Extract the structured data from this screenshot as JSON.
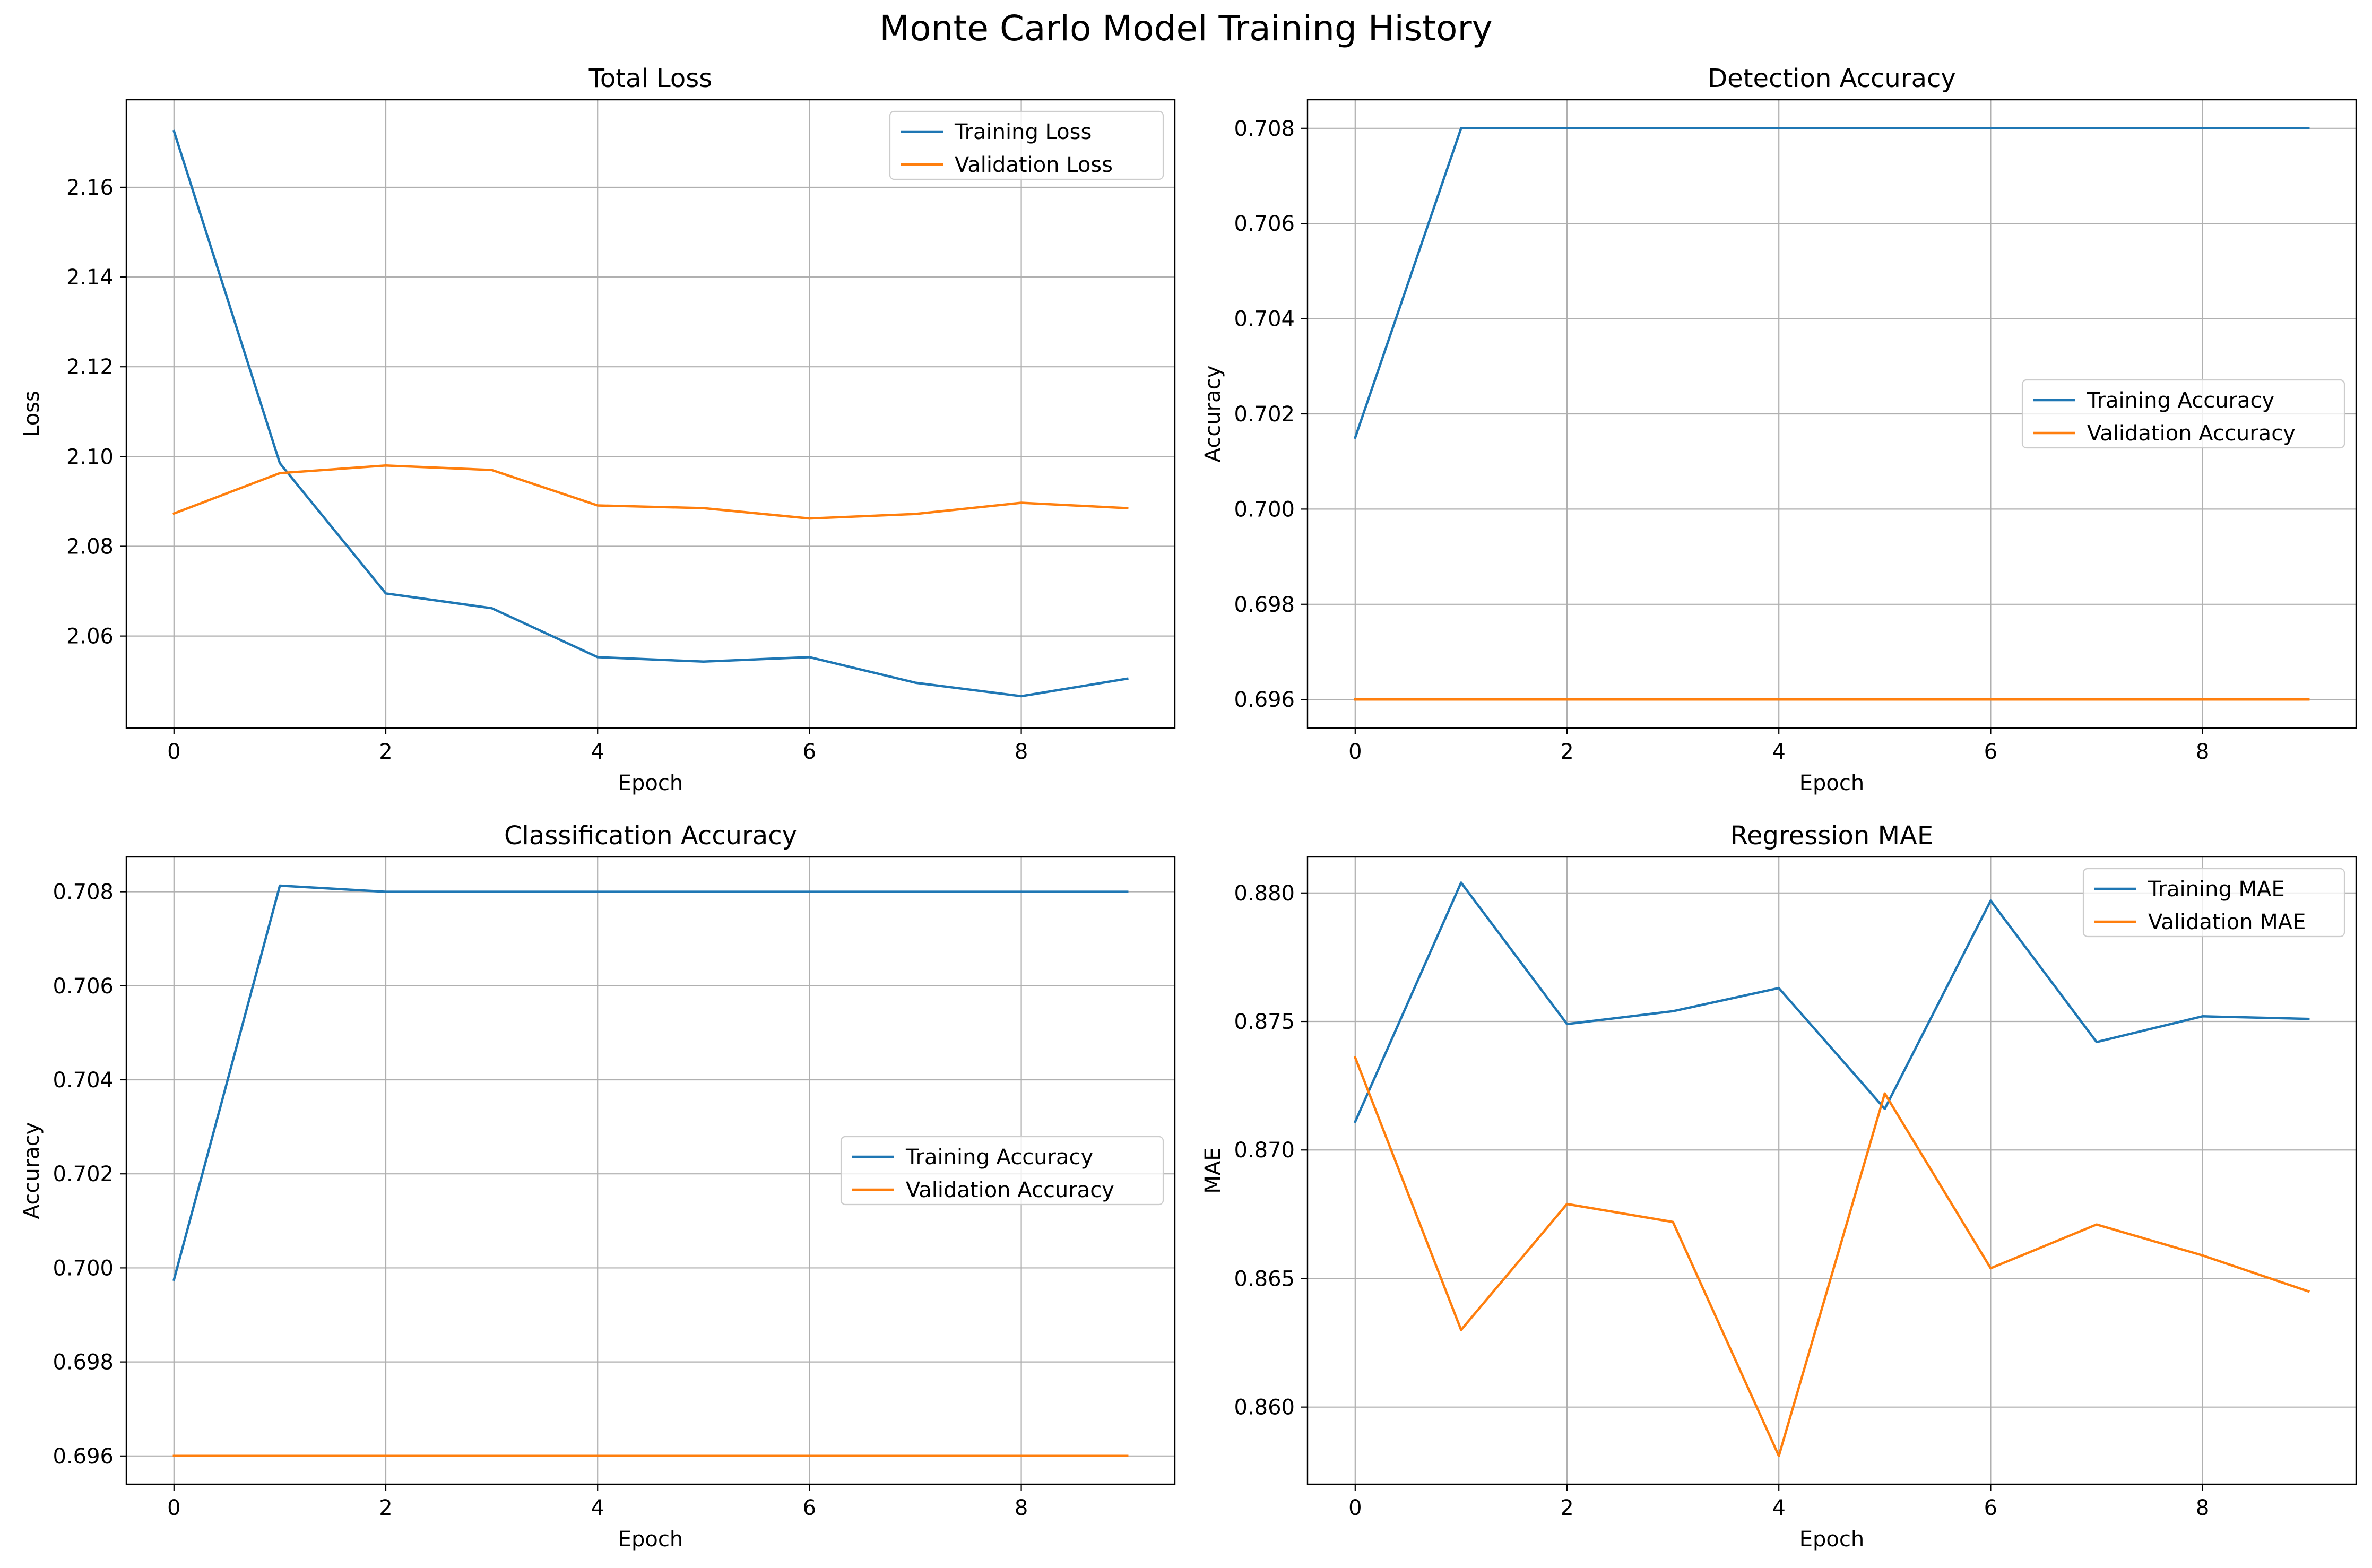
{
  "figure": {
    "suptitle": "Monte Carlo Model Training History",
    "colors": {
      "training": "#1f77b4",
      "validation": "#ff7f0e",
      "grid": "#b0b0b0"
    }
  },
  "chart_data": [
    {
      "type": "line",
      "title": "Total Loss",
      "xlabel": "Epoch",
      "ylabel": "Loss",
      "x": [
        0,
        1,
        2,
        3,
        4,
        5,
        6,
        7,
        8,
        9
      ],
      "xlim": [
        -0.45,
        9.45
      ],
      "ylim": [
        2.0395,
        2.1795
      ],
      "xticks": [
        0,
        2,
        4,
        6,
        8
      ],
      "yticks": [
        2.06,
        2.08,
        2.1,
        2.12,
        2.14,
        2.16
      ],
      "ytick_labels": [
        "2.06",
        "2.08",
        "2.10",
        "2.12",
        "2.14",
        "2.16"
      ],
      "grid": true,
      "legend_position": "upper right",
      "series": [
        {
          "name": "Training Loss",
          "values": [
            2.1725,
            2.0985,
            2.0695,
            2.0662,
            2.0553,
            2.0543,
            2.0553,
            2.0496,
            2.0466,
            2.0505
          ]
        },
        {
          "name": "Validation Loss",
          "values": [
            2.0873,
            2.0963,
            2.098,
            2.097,
            2.0891,
            2.0885,
            2.0862,
            2.0872,
            2.0897,
            2.0885
          ]
        }
      ]
    },
    {
      "type": "line",
      "title": "Detection Accuracy",
      "xlabel": "Epoch",
      "ylabel": "Accuracy",
      "x": [
        0,
        1,
        2,
        3,
        4,
        5,
        6,
        7,
        8,
        9
      ],
      "xlim": [
        -0.45,
        9.45
      ],
      "ylim": [
        0.6954,
        0.7086
      ],
      "xticks": [
        0,
        2,
        4,
        6,
        8
      ],
      "yticks": [
        0.696,
        0.698,
        0.7,
        0.702,
        0.704,
        0.706,
        0.708
      ],
      "ytick_labels": [
        "0.696",
        "0.698",
        "0.700",
        "0.702",
        "0.704",
        "0.706",
        "0.708"
      ],
      "grid": true,
      "legend_position": "center right",
      "series": [
        {
          "name": "Training Accuracy",
          "values": [
            0.7015,
            0.708,
            0.708,
            0.708,
            0.708,
            0.708,
            0.708,
            0.708,
            0.708,
            0.708
          ]
        },
        {
          "name": "Validation Accuracy",
          "values": [
            0.696,
            0.696,
            0.696,
            0.696,
            0.696,
            0.696,
            0.696,
            0.696,
            0.696,
            0.696
          ]
        }
      ]
    },
    {
      "type": "line",
      "title": "Classification Accuracy",
      "xlabel": "Epoch",
      "ylabel": "Accuracy",
      "x": [
        0,
        1,
        2,
        3,
        4,
        5,
        6,
        7,
        8,
        9
      ],
      "xlim": [
        -0.45,
        9.45
      ],
      "ylim": [
        0.6954,
        0.70874
      ],
      "xticks": [
        0,
        2,
        4,
        6,
        8
      ],
      "yticks": [
        0.696,
        0.698,
        0.7,
        0.702,
        0.704,
        0.706,
        0.708
      ],
      "ytick_labels": [
        "0.696",
        "0.698",
        "0.700",
        "0.702",
        "0.704",
        "0.706",
        "0.708"
      ],
      "grid": true,
      "legend_position": "center right",
      "series": [
        {
          "name": "Training Accuracy",
          "values": [
            0.69975,
            0.70813,
            0.708,
            0.708,
            0.708,
            0.708,
            0.708,
            0.708,
            0.708,
            0.708
          ]
        },
        {
          "name": "Validation Accuracy",
          "values": [
            0.696,
            0.696,
            0.696,
            0.696,
            0.696,
            0.696,
            0.696,
            0.696,
            0.696,
            0.696
          ]
        }
      ]
    },
    {
      "type": "line",
      "title": "Regression MAE",
      "xlabel": "Epoch",
      "ylabel": "MAE",
      "x": [
        0,
        1,
        2,
        3,
        4,
        5,
        6,
        7,
        8,
        9
      ],
      "xlim": [
        -0.45,
        9.45
      ],
      "ylim": [
        0.857,
        0.8814
      ],
      "xticks": [
        0,
        2,
        4,
        6,
        8
      ],
      "yticks": [
        0.86,
        0.865,
        0.87,
        0.875,
        0.88
      ],
      "ytick_labels": [
        "0.860",
        "0.865",
        "0.870",
        "0.875",
        "0.880"
      ],
      "grid": true,
      "legend_position": "upper right",
      "series": [
        {
          "name": "Training MAE",
          "values": [
            0.8711,
            0.8804,
            0.8749,
            0.8754,
            0.8763,
            0.8716,
            0.8797,
            0.8742,
            0.8752,
            0.8751
          ]
        },
        {
          "name": "Validation MAE",
          "values": [
            0.8736,
            0.863,
            0.8679,
            0.8672,
            0.8581,
            0.8722,
            0.8654,
            0.8671,
            0.8659,
            0.8645
          ]
        }
      ]
    }
  ]
}
